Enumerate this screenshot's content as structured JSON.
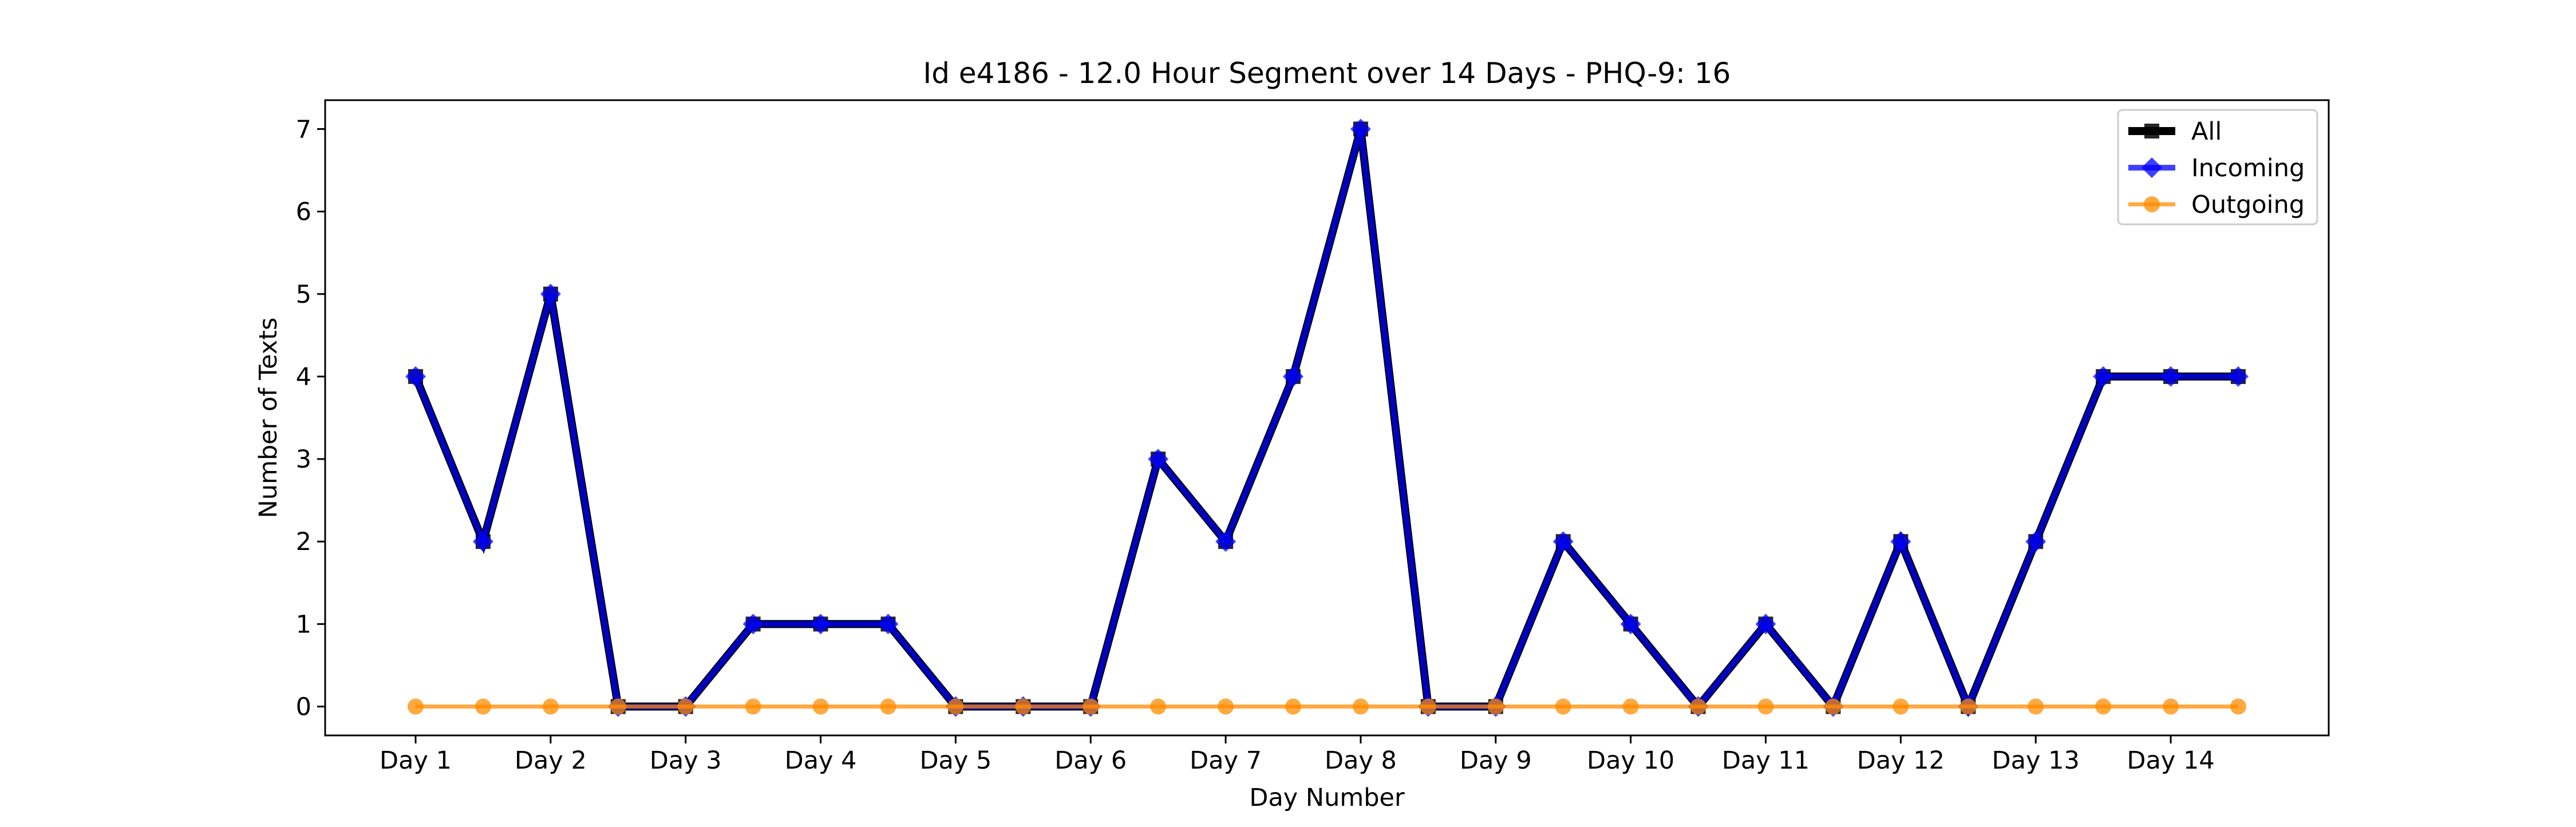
{
  "chart_data": {
    "type": "line",
    "title": "Id e4186 - 12.0 Hour Segment over 14 Days - PHQ-9: 16",
    "xlabel": "Day Number",
    "ylabel": "Number of Texts",
    "x_tick_labels": [
      "Day 1",
      "Day 2",
      "Day 3",
      "Day 4",
      "Day 5",
      "Day 6",
      "Day 7",
      "Day 8",
      "Day 9",
      "Day 10",
      "Day 11",
      "Day 12",
      "Day 13",
      "Day 14"
    ],
    "y_ticks": [
      0,
      1,
      2,
      3,
      4,
      5,
      6,
      7
    ],
    "xlim": [
      0.33,
      15.17
    ],
    "ylim": [
      -0.35,
      7.35
    ],
    "grid": false,
    "legend_position": "top-right",
    "x": [
      1,
      1.5,
      2,
      2.5,
      3,
      3.5,
      4,
      4.5,
      5,
      5.5,
      6,
      6.5,
      7,
      7.5,
      8,
      8.5,
      9,
      9.5,
      10,
      10.5,
      11,
      11.5,
      12,
      12.5,
      13,
      13.5,
      14,
      14.5
    ],
    "series": [
      {
        "name": "All",
        "color": "#000000",
        "marker": "square",
        "values": [
          4,
          2,
          5,
          0,
          0,
          1,
          1,
          1,
          0,
          0,
          0,
          3,
          2,
          4,
          7,
          0,
          0,
          2,
          1,
          0,
          1,
          0,
          2,
          0,
          2,
          4,
          4,
          4
        ]
      },
      {
        "name": "Incoming",
        "color": "#0000ff",
        "marker": "diamond",
        "values": [
          4,
          2,
          5,
          0,
          0,
          1,
          1,
          1,
          0,
          0,
          0,
          3,
          2,
          4,
          7,
          0,
          0,
          2,
          1,
          0,
          1,
          0,
          2,
          0,
          2,
          4,
          4,
          4
        ]
      },
      {
        "name": "Outgoing",
        "color": "#ff8c00",
        "marker": "circle",
        "values": [
          0,
          0,
          0,
          0,
          0,
          0,
          0,
          0,
          0,
          0,
          0,
          0,
          0,
          0,
          0,
          0,
          0,
          0,
          0,
          0,
          0,
          0,
          0,
          0,
          0,
          0,
          0,
          0
        ]
      }
    ]
  }
}
